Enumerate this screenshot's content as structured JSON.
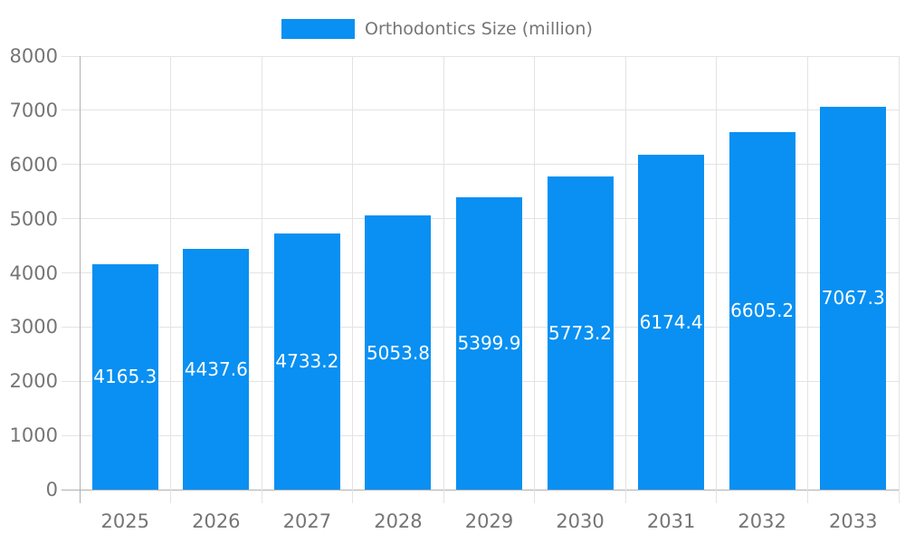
{
  "chart_data": {
    "type": "bar",
    "title": "Orthodontics Size (million)",
    "legend": [
      "Orthodontics Size (million)"
    ],
    "legend_position": "top",
    "categories": [
      "2025",
      "2026",
      "2027",
      "2028",
      "2029",
      "2030",
      "2031",
      "2032",
      "2033"
    ],
    "series": [
      {
        "name": "Orthodontics Size (million)",
        "values": [
          4165.3,
          4437.6,
          4733.2,
          5053.8,
          5399.9,
          5773.2,
          6174.4,
          6605.2,
          7067.3
        ]
      }
    ],
    "xlabel": "",
    "ylabel": "",
    "ylim": [
      0,
      8000
    ],
    "y_ticks": [
      0,
      1000,
      2000,
      3000,
      4000,
      5000,
      6000,
      7000,
      8000
    ],
    "grid": true,
    "colors": {
      "bar": "#0990f2",
      "bar_label_text": "#ffffff",
      "axis_text": "#757575",
      "axis_line": "#b0b0b0",
      "gridline": "#e3e3e3"
    }
  }
}
